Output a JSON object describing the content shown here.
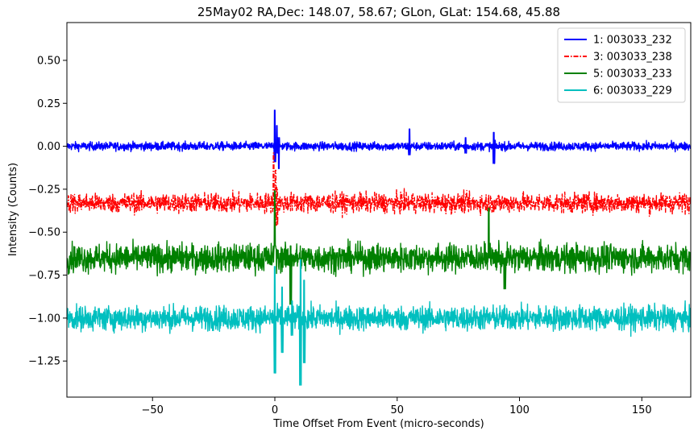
{
  "chart_data": {
    "type": "line",
    "title": "25May02 RA,Dec:  148.07,  58.67; GLon, GLat:  154.68,  45.88",
    "xlabel": "Time Offset From Event (micro-seconds)",
    "ylabel": "Intensity (Counts)",
    "xlim": [
      -85,
      170
    ],
    "ylim": [
      -1.46,
      0.72
    ],
    "xticks": [
      -50,
      0,
      50,
      100,
      150
    ],
    "xtick_labels": [
      "−50",
      "0",
      "50",
      "100",
      "150"
    ],
    "yticks": [
      0.5,
      0.25,
      0.0,
      -0.25,
      -0.5,
      -0.75,
      -1.0,
      -1.25
    ],
    "ytick_labels": [
      "0.50",
      "0.25",
      "0.00",
      "−0.25",
      "−0.50",
      "−0.75",
      "−1.00",
      "−1.25"
    ],
    "grid": false,
    "legend_position": "top-right",
    "series": [
      {
        "name": "1: 003033_232",
        "color": "#0000ff",
        "style": "solid",
        "baseline": 0.0,
        "noise": 0.012,
        "events": [
          [
            0,
            0.21,
            -0.09
          ],
          [
            0.8,
            0.12,
            -0.04
          ],
          [
            1.6,
            -0.13,
            0.05
          ],
          [
            55,
            0.1,
            -0.05
          ],
          [
            89.5,
            0.08,
            -0.1
          ],
          [
            78,
            0.05,
            -0.04
          ]
        ]
      },
      {
        "name": "3: 003033_238",
        "color": "#ff0000",
        "style": "dashdot",
        "baseline": -0.33,
        "noise": 0.028,
        "events": [
          [
            -0.5,
            -0.04,
            -0.37
          ],
          [
            0.3,
            -0.14,
            -0.4
          ],
          [
            0.9,
            -0.24,
            -0.46
          ]
        ]
      },
      {
        "name": "5: 003033_233",
        "color": "#008000",
        "style": "solid",
        "baseline": -0.65,
        "noise": 0.04,
        "events": [
          [
            0,
            -0.26,
            -0.58
          ],
          [
            6.5,
            -0.58,
            -0.92
          ],
          [
            87.5,
            -0.36,
            -0.65
          ],
          [
            94,
            -0.65,
            -0.83
          ]
        ]
      },
      {
        "name": "6: 003033_229",
        "color": "#00bfbf",
        "style": "solid",
        "baseline": -1.0,
        "noise": 0.035,
        "events": [
          [
            0,
            -0.7,
            -1.32
          ],
          [
            3,
            -0.82,
            -1.2
          ],
          [
            10.5,
            -0.66,
            -1.39
          ],
          [
            12,
            -0.78,
            -1.26
          ],
          [
            7,
            -0.9,
            -1.1
          ]
        ]
      }
    ]
  }
}
